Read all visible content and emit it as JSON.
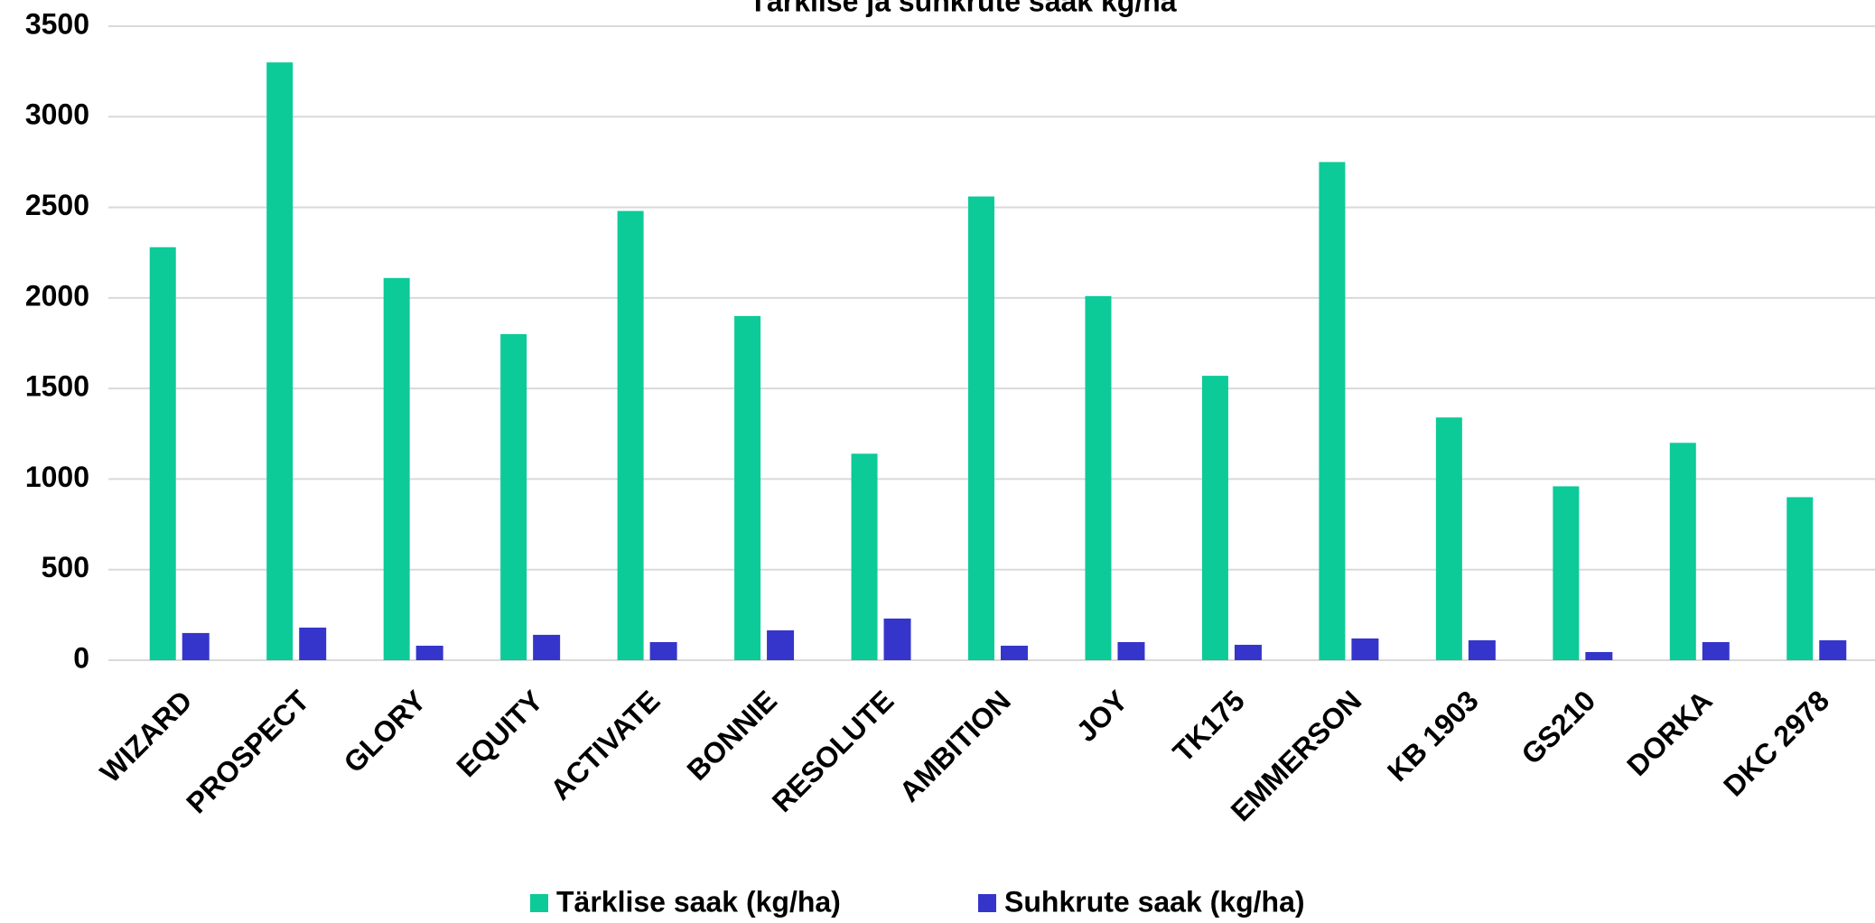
{
  "chart_data": {
    "type": "bar",
    "title": "Tärklise ja suhkrute saak kg/ha",
    "categories": [
      "WIZARD",
      "PROSPECT",
      "GLORY",
      "EQUITY",
      "ACTIVATE",
      "BONNIE",
      "RESOLUTE",
      "AMBITION",
      "JOY",
      "TK175",
      "EMMERSON",
      "KB 1903",
      "GS210",
      "DORKA",
      "DKC 2978"
    ],
    "series": [
      {
        "name": "Tärklise saak (kg/ha)",
        "color": "#0ccb98",
        "values": [
          2280,
          3300,
          2110,
          1800,
          2480,
          1900,
          1140,
          2560,
          2010,
          1570,
          2750,
          1340,
          960,
          1200,
          900
        ]
      },
      {
        "name": "Suhkrute saak (kg/ha)",
        "color": "#3535cc",
        "values": [
          150,
          180,
          80,
          140,
          100,
          165,
          230,
          80,
          100,
          85,
          120,
          110,
          45,
          100,
          110
        ]
      }
    ],
    "ylim": [
      0,
      3500
    ],
    "yticks": [
      0,
      500,
      1000,
      1500,
      2000,
      2500,
      3000,
      3500
    ],
    "grid": true,
    "legend": "bottom"
  }
}
